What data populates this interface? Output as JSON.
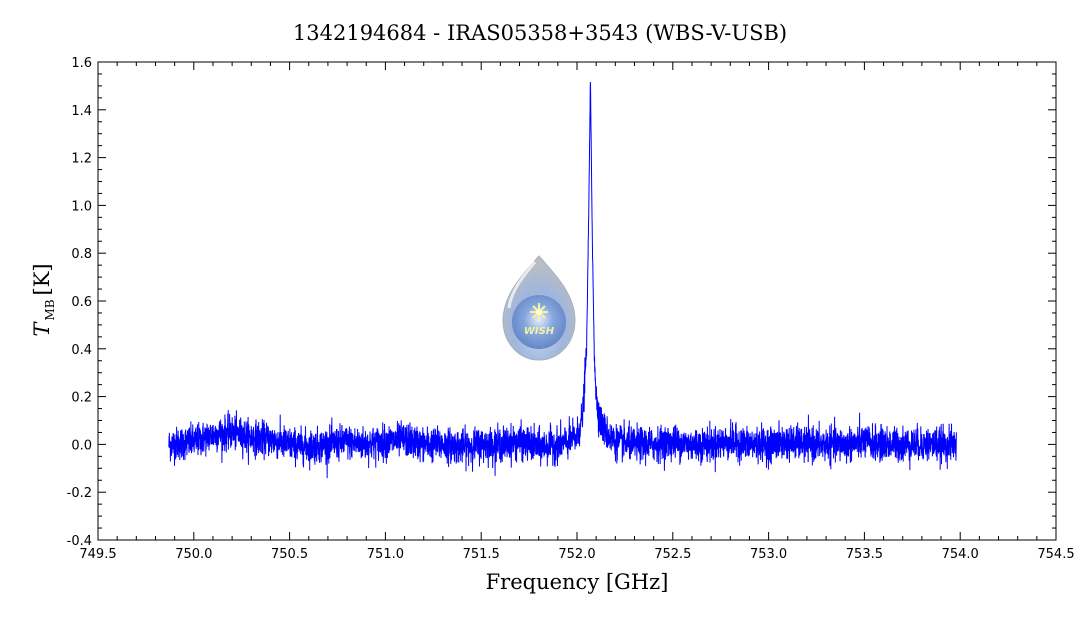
{
  "chart_data": {
    "type": "line",
    "title": "1342194684 - IRAS05358+3543 (WBS-V-USB)",
    "xlabel": "Frequency [GHz]",
    "ylabel": {
      "main": "T",
      "sub": "MB",
      "unit": "[K]"
    },
    "xlim": [
      749.5,
      754.5
    ],
    "ylim": [
      -0.4,
      1.6
    ],
    "xticks": [
      "749.5",
      "750.0",
      "750.5",
      "751.0",
      "751.5",
      "752.0",
      "752.5",
      "753.0",
      "753.5",
      "754.0",
      "754.5"
    ],
    "yticks": [
      "-0.4",
      "-0.2",
      "0.0",
      "0.2",
      "0.4",
      "0.6",
      "0.8",
      "1.0",
      "1.2",
      "1.4",
      "1.6"
    ],
    "grid": false,
    "series": [
      {
        "color": "#0000ff",
        "x_range": [
          749.87,
          753.98
        ],
        "noise_rms": 0.035,
        "peak": {
          "x": 752.07,
          "y": 1.53
        },
        "x": [
          749.87,
          750.0,
          750.1,
          750.2,
          750.3,
          750.4,
          750.5,
          750.6,
          750.7,
          750.8,
          750.9,
          751.0,
          751.1,
          751.2,
          751.3,
          751.4,
          751.5,
          751.6,
          751.7,
          751.8,
          751.9,
          751.95,
          752.0,
          752.03,
          752.05,
          752.06,
          752.07,
          752.08,
          752.09,
          752.1,
          752.12,
          752.15,
          752.2,
          752.3,
          752.4,
          752.5,
          752.6,
          752.7,
          752.8,
          752.9,
          753.0,
          753.1,
          753.2,
          753.3,
          753.4,
          753.5,
          753.6,
          753.7,
          753.8,
          753.9,
          753.98
        ],
        "y": [
          0.0,
          0.01,
          0.04,
          0.05,
          0.03,
          0.02,
          0.0,
          -0.01,
          0.0,
          0.01,
          0.0,
          0.01,
          0.02,
          0.0,
          0.0,
          -0.01,
          0.0,
          0.0,
          0.01,
          -0.01,
          0.0,
          0.01,
          0.03,
          0.12,
          0.4,
          0.9,
          1.53,
          0.85,
          0.4,
          0.2,
          0.1,
          0.05,
          0.01,
          0.0,
          0.0,
          0.01,
          0.0,
          0.0,
          0.01,
          0.0,
          0.0,
          0.01,
          0.0,
          0.0,
          0.0,
          0.01,
          0.0,
          0.0,
          0.0,
          0.0,
          0.0
        ]
      }
    ]
  },
  "logo": {
    "text": "WISH",
    "name": "WISH"
  }
}
